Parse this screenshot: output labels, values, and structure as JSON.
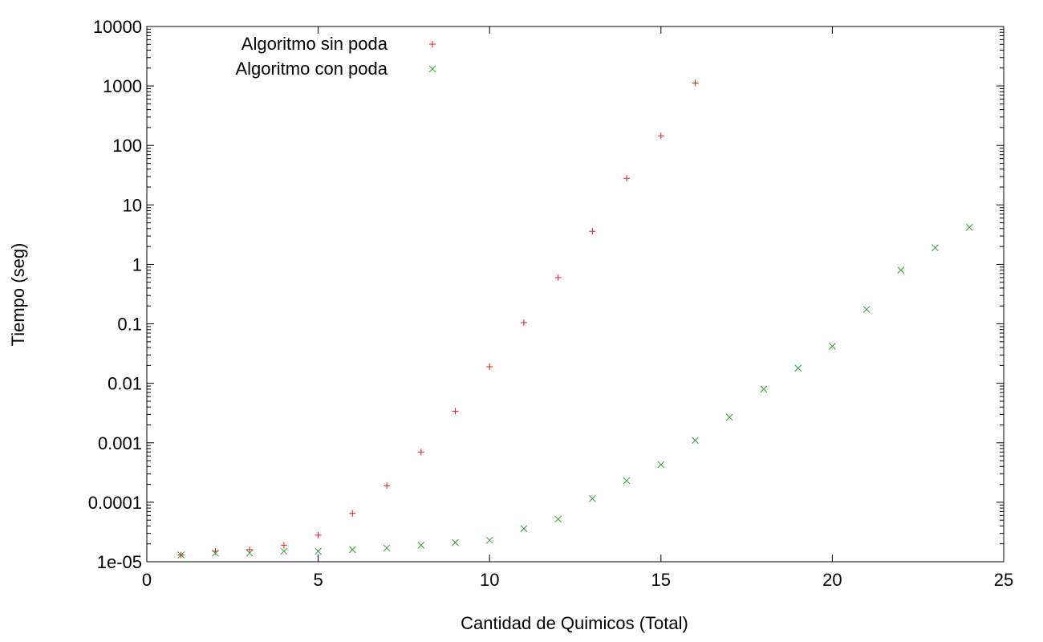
{
  "chart_data": {
    "type": "scatter",
    "title": "",
    "xlabel": "Cantidad de Quimicos (Total)",
    "ylabel": "Tiempo (seg)",
    "xlim": [
      0,
      25
    ],
    "ylim": [
      1e-05,
      10000
    ],
    "yscale": "log",
    "x_ticks": [
      0,
      5,
      10,
      15,
      20,
      25
    ],
    "x_tick_labels": [
      "0",
      "5",
      "10",
      "15",
      "20",
      "25"
    ],
    "y_ticks": [
      1e-05,
      0.0001,
      0.001,
      0.01,
      0.1,
      1,
      10,
      100,
      1000,
      10000
    ],
    "y_tick_labels": [
      "1e-05",
      "0.0001",
      "0.001",
      "0.01",
      "0.1",
      "1",
      "10",
      "100",
      "1000",
      "10000"
    ],
    "grid": false,
    "legend_position": "top-left",
    "series": [
      {
        "name": "Algoritmo sin poda",
        "marker": "plus",
        "color": "#e41a1c",
        "points": [
          [
            1,
            1.3e-05
          ],
          [
            2,
            1.5e-05
          ],
          [
            3,
            1.6e-05
          ],
          [
            4,
            1.9e-05
          ],
          [
            5,
            2.8e-05
          ],
          [
            6,
            6.5e-05
          ],
          [
            7,
            0.00019
          ],
          [
            8,
            0.0007
          ],
          [
            9,
            0.0034
          ],
          [
            10,
            0.019
          ],
          [
            11,
            0.105
          ],
          [
            12,
            0.6
          ],
          [
            13,
            3.6
          ],
          [
            14,
            28
          ],
          [
            15,
            145
          ],
          [
            16,
            1120
          ]
        ]
      },
      {
        "name": "Algoritmo con poda",
        "marker": "cross",
        "color": "#2ca02c",
        "points": [
          [
            1,
            1.3e-05
          ],
          [
            2,
            1.4e-05
          ],
          [
            3,
            1.4e-05
          ],
          [
            4,
            1.5e-05
          ],
          [
            5,
            1.5e-05
          ],
          [
            6,
            1.6e-05
          ],
          [
            7,
            1.7e-05
          ],
          [
            8,
            1.9e-05
          ],
          [
            9,
            2.1e-05
          ],
          [
            10,
            2.3e-05
          ],
          [
            11,
            3.6e-05
          ],
          [
            12,
            5.2e-05
          ],
          [
            13,
            0.000115
          ],
          [
            14,
            0.00023
          ],
          [
            15,
            0.00043
          ],
          [
            16,
            0.0011
          ],
          [
            17,
            0.0027
          ],
          [
            18,
            0.008
          ],
          [
            19,
            0.018
          ],
          [
            20,
            0.042
          ],
          [
            21,
            0.175
          ],
          [
            22,
            0.8
          ],
          [
            23,
            1.9
          ],
          [
            24,
            4.2
          ]
        ]
      }
    ]
  }
}
